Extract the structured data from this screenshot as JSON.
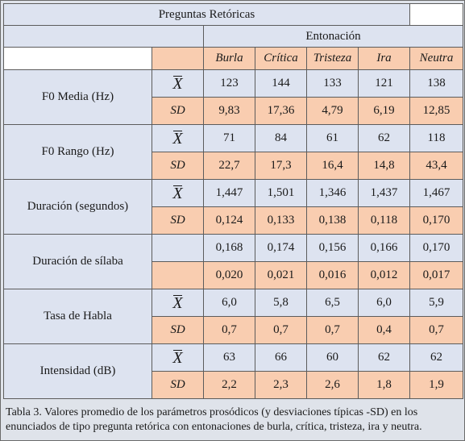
{
  "table": {
    "title": "Preguntas Retóricas",
    "group_header": "Entonación",
    "columns": [
      "Burla",
      "Crítica",
      "Tristeza",
      "Ira",
      "Neutra"
    ],
    "rows": [
      {
        "label": "F0 Media (Hz)",
        "mean_symbol": "X",
        "sd_symbol": "SD",
        "mean": [
          "123",
          "144",
          "133",
          "121",
          "138"
        ],
        "sd": [
          "9,83",
          "17,36",
          "4,79",
          "6,19",
          "12,85"
        ]
      },
      {
        "label": "F0 Rango (Hz)",
        "mean_symbol": "X",
        "sd_symbol": "SD",
        "mean": [
          "71",
          "84",
          "61",
          "62",
          "118"
        ],
        "sd": [
          "22,7",
          "17,3",
          "16,4",
          "14,8",
          "43,4"
        ]
      },
      {
        "label": "Duración (segundos)",
        "mean_symbol": "X",
        "sd_symbol": "SD",
        "mean": [
          "1,447",
          "1,501",
          "1,346",
          "1,437",
          "1,467"
        ],
        "sd": [
          "0,124",
          "0,133",
          "0,138",
          "0,118",
          "0,170"
        ]
      },
      {
        "label": "Duración de sílaba",
        "mean_symbol": "",
        "sd_symbol": "",
        "mean": [
          "0,168",
          "0,174",
          "0,156",
          "0,166",
          "0,170"
        ],
        "sd": [
          "0,020",
          "0,021",
          "0,016",
          "0,012",
          "0,017"
        ]
      },
      {
        "label": "Tasa de Habla",
        "mean_symbol": "X",
        "sd_symbol": "SD",
        "mean": [
          "6,0",
          "5,8",
          "6,5",
          "6,0",
          "5,9"
        ],
        "sd": [
          "0,7",
          "0,7",
          "0,7",
          "0,4",
          "0,7"
        ]
      },
      {
        "label": "Intensidad (dB)",
        "mean_symbol": "X",
        "sd_symbol": "SD",
        "mean": [
          "63",
          "66",
          "60",
          "62",
          "62"
        ],
        "sd": [
          "2,2",
          "2,3",
          "2,6",
          "1,8",
          "1,9"
        ]
      }
    ]
  },
  "caption": "Tabla 3. Valores promedio de los parámetros prosódicos (y desviaciones típicas -SD) en los enunciados de tipo pregunta retórica con entonaciones de burla, crítica, tristeza, ira y neutra.",
  "colors": {
    "header_blue": "#dde3f0",
    "header_orange": "#f9cdb0",
    "background": "#dfe3ea"
  }
}
